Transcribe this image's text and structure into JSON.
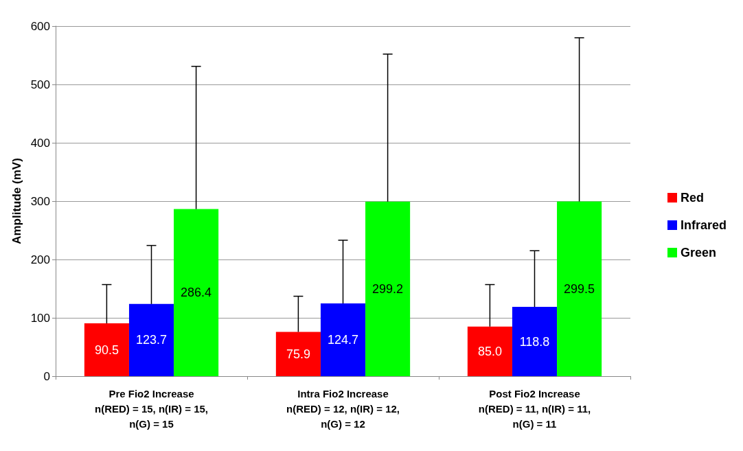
{
  "chart_data": {
    "type": "bar",
    "ylabel": "Amplitude (mV)",
    "categories": [
      "Pre Fio2 Increase\nn(RED) = 15, n(IR) = 15,\nn(G) = 15",
      "Intra Fio2 Increase\nn(RED) = 12, n(IR) = 12,\nn(G) = 12",
      "Post Fio2 Increase\nn(RED) = 11, n(IR) = 11,\nn(G) = 11"
    ],
    "series": [
      {
        "name": "Red",
        "color": "#ff0000",
        "values": [
          90.5,
          75.9,
          85.0
        ],
        "value_labels": [
          "90.5",
          "75.9",
          "85.0"
        ],
        "errors": [
          [
            90.5,
            157
          ],
          [
            75.9,
            137
          ],
          [
            85.0,
            157
          ]
        ]
      },
      {
        "name": "Infrared",
        "color": "#0000ff",
        "values": [
          123.7,
          124.7,
          118.8
        ],
        "value_labels": [
          "123.7",
          "124.7",
          "118.8"
        ],
        "errors": [
          [
            123.7,
            224
          ],
          [
            124.7,
            233
          ],
          [
            118.8,
            215
          ]
        ]
      },
      {
        "name": "Green",
        "color": "#00ff00",
        "values": [
          286.4,
          299.2,
          299.5
        ],
        "value_labels": [
          "286.4",
          "299.2",
          "299.5"
        ],
        "errors": [
          [
            286.4,
            531
          ],
          [
            299.2,
            552
          ],
          [
            299.5,
            580
          ]
        ]
      }
    ],
    "ylim": [
      0,
      600
    ],
    "yticks": [
      0,
      100,
      200,
      300,
      400,
      500,
      600
    ],
    "grid": "y",
    "legend": "right"
  }
}
